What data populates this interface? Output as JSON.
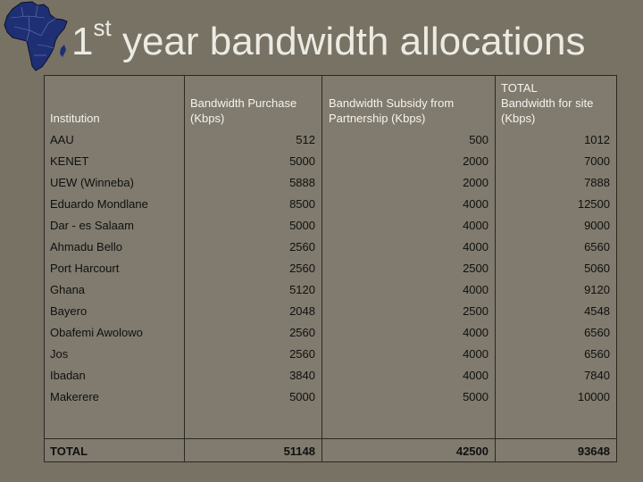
{
  "title": {
    "prefix": "1",
    "sup": "st",
    "rest": " year bandwidth allocations"
  },
  "headers": {
    "institution": "Institution",
    "purchase": [
      "Bandwidth Purchase",
      "(Kbps)"
    ],
    "subsidy": [
      "Bandwidth Subsidy from",
      "Partnership (Kbps)"
    ],
    "total": [
      "TOTAL",
      "Bandwidth for site",
      "(Kbps)"
    ]
  },
  "rows": [
    {
      "name": "AAU",
      "purchase": "512",
      "subsidy": "500",
      "total": "1012"
    },
    {
      "name": "KENET",
      "purchase": "5000",
      "subsidy": "2000",
      "total": "7000"
    },
    {
      "name": "UEW (Winneba)",
      "purchase": "5888",
      "subsidy": "2000",
      "total": "7888"
    },
    {
      "name": "Eduardo Mondlane",
      "purchase": "8500",
      "subsidy": "4000",
      "total": "12500"
    },
    {
      "name": "Dar - es Salaam",
      "purchase": "5000",
      "subsidy": "4000",
      "total": "9000"
    },
    {
      "name": "Ahmadu Bello",
      "purchase": "2560",
      "subsidy": "4000",
      "total": "6560"
    },
    {
      "name": "Port Harcourt",
      "purchase": "2560",
      "subsidy": "2500",
      "total": "5060"
    },
    {
      "name": "Ghana",
      "purchase": "5120",
      "subsidy": "4000",
      "total": "9120"
    },
    {
      "name": "Bayero",
      "purchase": "2048",
      "subsidy": "2500",
      "total": "4548"
    },
    {
      "name": "Obafemi Awolowo",
      "purchase": "2560",
      "subsidy": "4000",
      "total": "6560"
    },
    {
      "name": "Jos",
      "purchase": "2560",
      "subsidy": "4000",
      "total": "6560"
    },
    {
      "name": "Ibadan",
      "purchase": "3840",
      "subsidy": "4000",
      "total": "7840"
    },
    {
      "name": "Makerere",
      "purchase": "5000",
      "subsidy": "5000",
      "total": "10000"
    }
  ],
  "totals": {
    "label": "TOTAL",
    "purchase": "51148",
    "subsidy": "42500",
    "total": "93648"
  },
  "colors": {
    "background": "#777263",
    "table": "#807b6e",
    "map": "#1f2f73",
    "text": "#101010",
    "header_text": "#f4f3ee"
  }
}
